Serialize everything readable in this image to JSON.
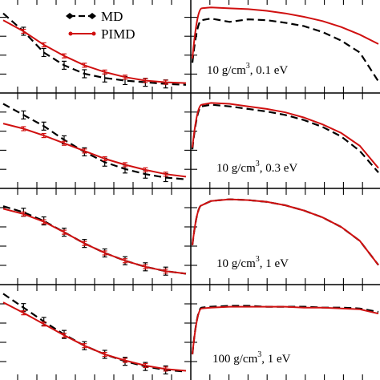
{
  "legend": {
    "md_label": "MD",
    "pimd_label": "PIMD",
    "md_color": "#000000",
    "pimd_color": "#d01010"
  },
  "chart_data": [
    {
      "type": "line",
      "panel": "left",
      "row": 1,
      "x": [
        0,
        1,
        2,
        3,
        4,
        5,
        6,
        7,
        8,
        9
      ],
      "series": [
        {
          "name": "MD",
          "values": [
            0.88,
            0.67,
            0.42,
            0.27,
            0.17,
            0.12,
            0.09,
            0.07,
            0.05,
            0.04
          ]
        },
        {
          "name": "PIMD",
          "values": [
            0.8,
            0.67,
            0.51,
            0.38,
            0.27,
            0.19,
            0.13,
            0.09,
            0.07,
            0.06
          ]
        }
      ]
    },
    {
      "type": "line",
      "panel": "right",
      "row": 1,
      "title": "10 g/cm3, 0.1 eV",
      "x": [
        0.0,
        0.05,
        0.1,
        0.2,
        0.3,
        0.4,
        0.5,
        0.6,
        0.7,
        0.8,
        0.9,
        1.0
      ],
      "series": [
        {
          "name": "MD",
          "values": [
            0.3,
            0.8,
            0.82,
            0.78,
            0.81,
            0.8,
            0.77,
            0.73,
            0.66,
            0.56,
            0.42,
            0.08
          ]
        },
        {
          "name": "PIMD",
          "values": [
            0.35,
            0.94,
            0.95,
            0.94,
            0.93,
            0.91,
            0.88,
            0.84,
            0.79,
            0.72,
            0.63,
            0.52
          ]
        }
      ]
    },
    {
      "type": "line",
      "panel": "left",
      "row": 2,
      "x": [
        0,
        1,
        2,
        3,
        4,
        5,
        6,
        7,
        8,
        9
      ],
      "series": [
        {
          "name": "MD",
          "values": [
            0.93,
            0.8,
            0.67,
            0.51,
            0.37,
            0.25,
            0.17,
            0.11,
            0.07,
            0.05
          ]
        },
        {
          "name": "PIMD",
          "values": [
            0.7,
            0.64,
            0.56,
            0.47,
            0.38,
            0.29,
            0.22,
            0.16,
            0.11,
            0.08
          ]
        }
      ]
    },
    {
      "type": "line",
      "panel": "right",
      "row": 2,
      "title": "10 g/cm3, 0.3 eV",
      "x": [
        0.0,
        0.05,
        0.1,
        0.2,
        0.3,
        0.4,
        0.5,
        0.6,
        0.7,
        0.8,
        0.9,
        1.0
      ],
      "series": [
        {
          "name": "MD",
          "values": [
            0.4,
            0.9,
            0.92,
            0.9,
            0.87,
            0.84,
            0.8,
            0.74,
            0.66,
            0.55,
            0.38,
            0.13
          ]
        },
        {
          "name": "PIMD",
          "values": [
            0.42,
            0.92,
            0.94,
            0.93,
            0.9,
            0.87,
            0.83,
            0.77,
            0.69,
            0.59,
            0.44,
            0.18
          ]
        }
      ]
    },
    {
      "type": "line",
      "panel": "left",
      "row": 3,
      "x": [
        0,
        1,
        2,
        3,
        4,
        5,
        6,
        7,
        8,
        9
      ],
      "series": [
        {
          "name": "MD",
          "values": [
            0.85,
            0.78,
            0.68,
            0.55,
            0.42,
            0.31,
            0.22,
            0.15,
            0.1,
            0.07
          ]
        },
        {
          "name": "PIMD",
          "values": [
            0.82,
            0.76,
            0.67,
            0.55,
            0.42,
            0.31,
            0.22,
            0.15,
            0.1,
            0.07
          ]
        }
      ]
    },
    {
      "type": "line",
      "panel": "right",
      "row": 3,
      "title": "10 g/cm3, 1 eV",
      "x": [
        0.0,
        0.05,
        0.1,
        0.2,
        0.3,
        0.4,
        0.5,
        0.6,
        0.7,
        0.8,
        0.9,
        1.0
      ],
      "series": [
        {
          "name": "MD",
          "values": [
            0.4,
            0.86,
            0.91,
            0.93,
            0.92,
            0.9,
            0.86,
            0.8,
            0.72,
            0.61,
            0.45,
            0.17
          ]
        },
        {
          "name": "PIMD",
          "values": [
            0.4,
            0.86,
            0.91,
            0.93,
            0.92,
            0.9,
            0.86,
            0.8,
            0.72,
            0.61,
            0.45,
            0.17
          ]
        }
      ]
    },
    {
      "type": "line",
      "panel": "left",
      "row": 4,
      "x": [
        0,
        1,
        2,
        3,
        4,
        5,
        6,
        7,
        8,
        9
      ],
      "series": [
        {
          "name": "MD",
          "values": [
            0.95,
            0.79,
            0.63,
            0.48,
            0.35,
            0.25,
            0.17,
            0.11,
            0.07,
            0.05
          ]
        },
        {
          "name": "PIMD",
          "values": [
            0.85,
            0.73,
            0.6,
            0.47,
            0.35,
            0.25,
            0.18,
            0.12,
            0.08,
            0.06
          ]
        }
      ]
    },
    {
      "type": "line",
      "panel": "right",
      "row": 4,
      "title": "100 g/cm3, 1 eV",
      "x": [
        0.0,
        0.05,
        0.1,
        0.2,
        0.3,
        0.4,
        0.5,
        0.6,
        0.7,
        0.8,
        0.9,
        1.0
      ],
      "series": [
        {
          "name": "MD",
          "values": [
            0.25,
            0.79,
            0.8,
            0.81,
            0.81,
            0.8,
            0.8,
            0.8,
            0.79,
            0.79,
            0.78,
            0.74
          ]
        },
        {
          "name": "PIMD",
          "values": [
            0.25,
            0.78,
            0.79,
            0.8,
            0.8,
            0.8,
            0.8,
            0.79,
            0.79,
            0.78,
            0.77,
            0.72
          ]
        }
      ]
    }
  ],
  "panel_labels": [
    {
      "density": "10 g/cm",
      "exp": "3",
      "rest": ", 0.1 eV"
    },
    {
      "density": "10 g/cm",
      "exp": "3",
      "rest": ", 0.3 eV"
    },
    {
      "density": "10 g/cm",
      "exp": "3",
      "rest": ", 1 eV"
    },
    {
      "density": "100 g/cm",
      "exp": "3",
      "rest": ", 1 eV"
    }
  ]
}
